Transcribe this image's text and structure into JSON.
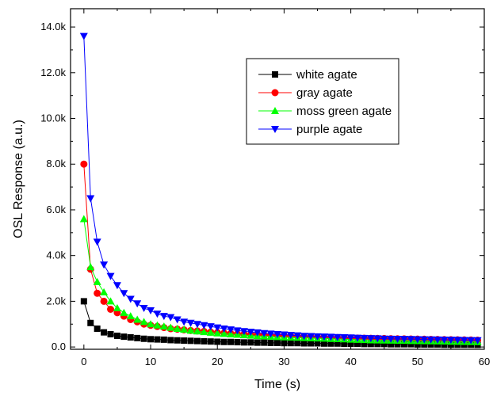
{
  "chart_data": {
    "type": "scatter",
    "xlabel": "Time (s)",
    "ylabel": "OSL Response (a.u.)",
    "xlim": [
      -2,
      60
    ],
    "ylim": [
      -100,
      14800
    ],
    "x_ticks": [
      0,
      10,
      20,
      30,
      40,
      50,
      60
    ],
    "x_tick_labels": [
      "0",
      "10",
      "20",
      "30",
      "40",
      "50",
      "60"
    ],
    "y_ticks": [
      0,
      2000,
      4000,
      6000,
      8000,
      10000,
      12000,
      14000
    ],
    "y_tick_labels": [
      "0.0",
      "2.0k",
      "4.0k",
      "6.0k",
      "8.0k",
      "10.0k",
      "12.0k",
      "14.0k"
    ],
    "grid": false,
    "legend_position": "top-right",
    "series": [
      {
        "name": "white agate",
        "color": "#000000",
        "marker": "square",
        "x": [
          0,
          1,
          2,
          3,
          4,
          5,
          6,
          7,
          8,
          9,
          10,
          11,
          12,
          13,
          14,
          15,
          16,
          17,
          18,
          19,
          20,
          21,
          22,
          23,
          24,
          25,
          26,
          27,
          28,
          29,
          30,
          31,
          32,
          33,
          34,
          35,
          36,
          37,
          38,
          39,
          40,
          41,
          42,
          43,
          44,
          45,
          46,
          47,
          48,
          49,
          50,
          51,
          52,
          53,
          54,
          55,
          56,
          57,
          58,
          59
        ],
        "y": [
          2000,
          1050,
          800,
          640,
          560,
          490,
          450,
          420,
          390,
          360,
          340,
          330,
          320,
          300,
          290,
          280,
          270,
          260,
          250,
          240,
          230,
          220,
          220,
          210,
          200,
          200,
          190,
          190,
          180,
          180,
          170,
          170,
          170,
          160,
          160,
          160,
          150,
          150,
          150,
          140,
          140,
          140,
          130,
          130,
          130,
          130,
          120,
          120,
          120,
          120,
          110,
          110,
          110,
          110,
          100,
          100,
          100,
          100,
          100,
          95
        ]
      },
      {
        "name": "gray agate",
        "color": "#ff0000",
        "marker": "circle",
        "x": [
          0,
          1,
          2,
          3,
          4,
          5,
          6,
          7,
          8,
          9,
          10,
          11,
          12,
          13,
          14,
          15,
          16,
          17,
          18,
          19,
          20,
          21,
          22,
          23,
          24,
          25,
          26,
          27,
          28,
          29,
          30,
          31,
          32,
          33,
          34,
          35,
          36,
          37,
          38,
          39,
          40,
          41,
          42,
          43,
          44,
          45,
          46,
          47,
          48,
          49,
          50,
          51,
          52,
          53,
          54,
          55,
          56,
          57,
          58,
          59
        ],
        "y": [
          8000,
          3400,
          2350,
          2000,
          1650,
          1500,
          1350,
          1200,
          1100,
          1000,
          950,
          900,
          850,
          800,
          780,
          750,
          720,
          700,
          680,
          650,
          630,
          610,
          590,
          570,
          560,
          540,
          530,
          520,
          510,
          500,
          490,
          480,
          470,
          460,
          450,
          440,
          430,
          420,
          410,
          400,
          395,
          390,
          385,
          380,
          375,
          370,
          365,
          360,
          355,
          350,
          345,
          340,
          335,
          330,
          325,
          320,
          315,
          310,
          305,
          300
        ]
      },
      {
        "name": "moss green agate",
        "color": "#00ff00",
        "marker": "triangle-up",
        "x": [
          0,
          1,
          2,
          3,
          4,
          5,
          6,
          7,
          8,
          9,
          10,
          11,
          12,
          13,
          14,
          15,
          16,
          17,
          18,
          19,
          20,
          21,
          22,
          23,
          24,
          25,
          26,
          27,
          28,
          29,
          30,
          31,
          32,
          33,
          34,
          35,
          36,
          37,
          38,
          39,
          40,
          41,
          42,
          43,
          44,
          45,
          46,
          47,
          48,
          49,
          50,
          51,
          52,
          53,
          54,
          55,
          56,
          57,
          58,
          59
        ],
        "y": [
          5600,
          3500,
          2850,
          2400,
          2000,
          1700,
          1500,
          1350,
          1200,
          1100,
          1000,
          950,
          900,
          850,
          800,
          760,
          720,
          690,
          660,
          630,
          600,
          580,
          560,
          540,
          520,
          500,
          480,
          470,
          460,
          440,
          430,
          420,
          410,
          400,
          390,
          380,
          370,
          360,
          350,
          340,
          330,
          320,
          310,
          300,
          295,
          290,
          285,
          280,
          275,
          270,
          265,
          260,
          255,
          250,
          245,
          240,
          235,
          230,
          225,
          220
        ]
      },
      {
        "name": "purple agate",
        "color": "#0000ff",
        "marker": "triangle-down",
        "x": [
          0,
          1,
          2,
          3,
          4,
          5,
          6,
          7,
          8,
          9,
          10,
          11,
          12,
          13,
          14,
          15,
          16,
          17,
          18,
          19,
          20,
          21,
          22,
          23,
          24,
          25,
          26,
          27,
          28,
          29,
          30,
          31,
          32,
          33,
          34,
          35,
          36,
          37,
          38,
          39,
          40,
          41,
          42,
          43,
          44,
          45,
          46,
          47,
          48,
          49,
          50,
          51,
          52,
          53,
          54,
          55,
          56,
          57,
          58,
          59
        ],
        "y": [
          13600,
          6500,
          4600,
          3600,
          3100,
          2700,
          2350,
          2100,
          1900,
          1700,
          1600,
          1450,
          1350,
          1300,
          1200,
          1100,
          1050,
          1000,
          950,
          900,
          850,
          800,
          760,
          720,
          690,
          660,
          630,
          600,
          580,
          560,
          540,
          520,
          500,
          480,
          470,
          460,
          450,
          440,
          430,
          420,
          410,
          400,
          390,
          380,
          370,
          360,
          355,
          350,
          345,
          340,
          335,
          330,
          325,
          320,
          315,
          310,
          305,
          300,
          295,
          290
        ]
      }
    ]
  }
}
